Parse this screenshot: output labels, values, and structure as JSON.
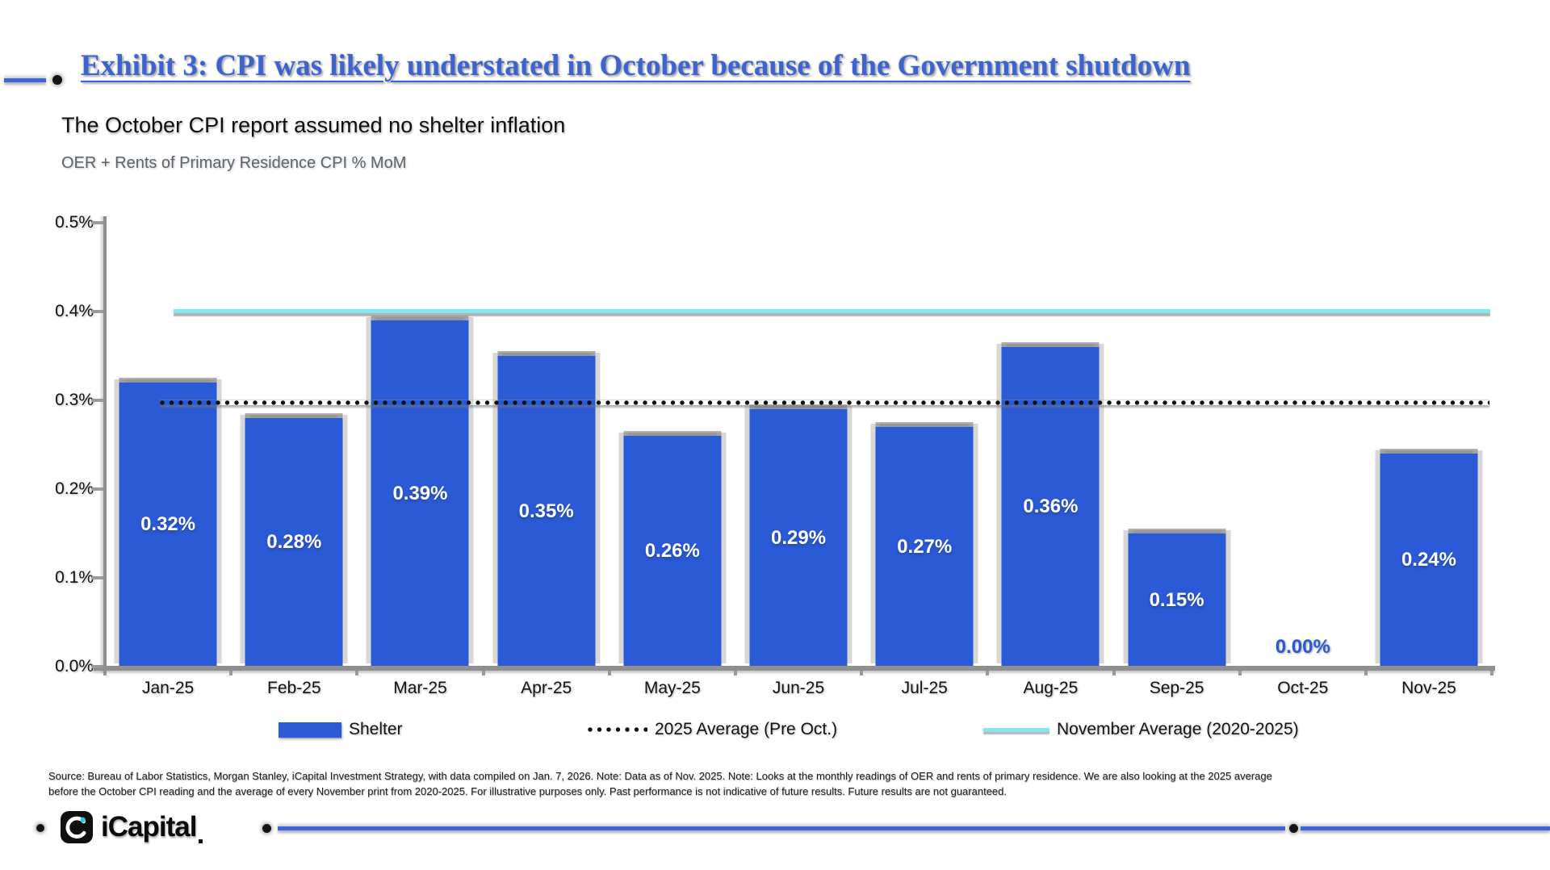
{
  "page": {
    "title": "Exhibit 3: CPI was likely understated in October because of the Government shutdown",
    "subtitle": "The October CPI report assumed no shelter inflation",
    "chart_note": "OER + Rents of Primary Residence CPI % MoM",
    "source_line1": "Source: Bureau of Labor Statistics, Morgan Stanley, iCapital Investment Strategy, with data compiled on Jan. 7, 2026. Note: Data as of Nov. 2025. Note: Looks at the monthly readings of OER and rents of primary residence. We are also looking at the 2025 average",
    "source_line2": "before the October CPI reading and the average of every November print from 2020-2025. For illustrative purposes only. Past performance is not indicative of future results. Future results are not guaranteed.",
    "logo_text": "iCapital"
  },
  "colors": {
    "bar_blue": "#2b5ad6",
    "title_blue": "#3d63cf",
    "cyan_line": "#84e7f0",
    "dotted_line": "#121212",
    "logo_cyan": "#38c9dd"
  },
  "legend": [
    {
      "label": "Shelter",
      "type": "bar",
      "color": "#2b5ad6"
    },
    {
      "label": "2025 Average (Pre Oct.)",
      "type": "dotted",
      "color": "#121212"
    },
    {
      "label": "November Average (2020-2025)",
      "type": "line",
      "color": "#84e7f0"
    }
  ],
  "chart_data": {
    "type": "bar",
    "title": "Exhibit 3: CPI was likely understated in October because of the Government shutdown",
    "subtitle": "The October CPI report assumed no shelter inflation",
    "ylabel_note": "OER + Rents of Primary Residence CPI % MoM",
    "categories": [
      "Jan-25",
      "Feb-25",
      "Mar-25",
      "Apr-25",
      "May-25",
      "Jun-25",
      "Jul-25",
      "Aug-25",
      "Sep-25",
      "Oct-25",
      "Nov-25"
    ],
    "series": [
      {
        "name": "Shelter",
        "values": [
          0.32,
          0.28,
          0.39,
          0.35,
          0.26,
          0.29,
          0.27,
          0.36,
          0.15,
          0.0,
          0.24
        ]
      }
    ],
    "bar_labels": [
      "0.32%",
      "0.28%",
      "0.39%",
      "0.35%",
      "0.26%",
      "0.29%",
      "0.27%",
      "0.36%",
      "0.15%",
      "0.00%",
      "0.24%"
    ],
    "yticks": [
      "0.0%",
      "0.1%",
      "0.2%",
      "0.3%",
      "0.4%",
      "0.5%"
    ],
    "ylim": [
      0,
      0.5
    ],
    "reference_lines": [
      {
        "name": "2025 Average (Pre Oct.)",
        "value": 0.297,
        "style": "dotted-black"
      },
      {
        "name": "November Average (2020-2025)",
        "value": 0.4,
        "style": "solid-cyan"
      }
    ],
    "grid": false,
    "legend_position": "bottom"
  }
}
